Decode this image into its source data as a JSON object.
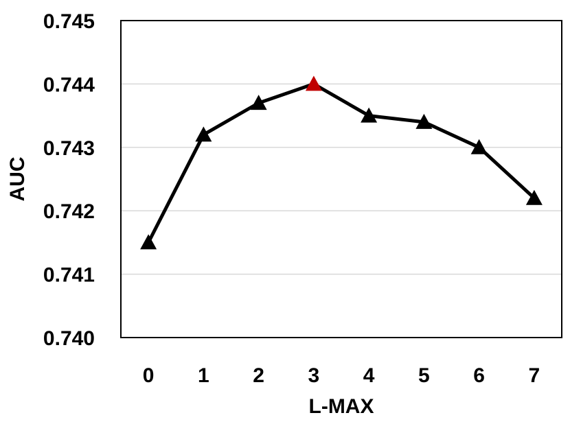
{
  "chart_data": {
    "type": "line",
    "xlabel": "L-MAX",
    "ylabel": "AUC",
    "categories": [
      "0",
      "1",
      "2",
      "3",
      "4",
      "5",
      "6",
      "7"
    ],
    "series": [
      {
        "values": [
          0.7415,
          0.7432,
          0.7437,
          0.744,
          0.7435,
          0.7434,
          0.743,
          0.7422
        ],
        "marker": "triangle",
        "color": "#000000",
        "highlight_index": 3,
        "highlight_color": "#c00000"
      }
    ],
    "ylim": [
      0.74,
      0.745
    ],
    "yticks": [
      "0.740",
      "0.741",
      "0.742",
      "0.743",
      "0.744",
      "0.745"
    ],
    "grid": true,
    "legend": "none"
  }
}
